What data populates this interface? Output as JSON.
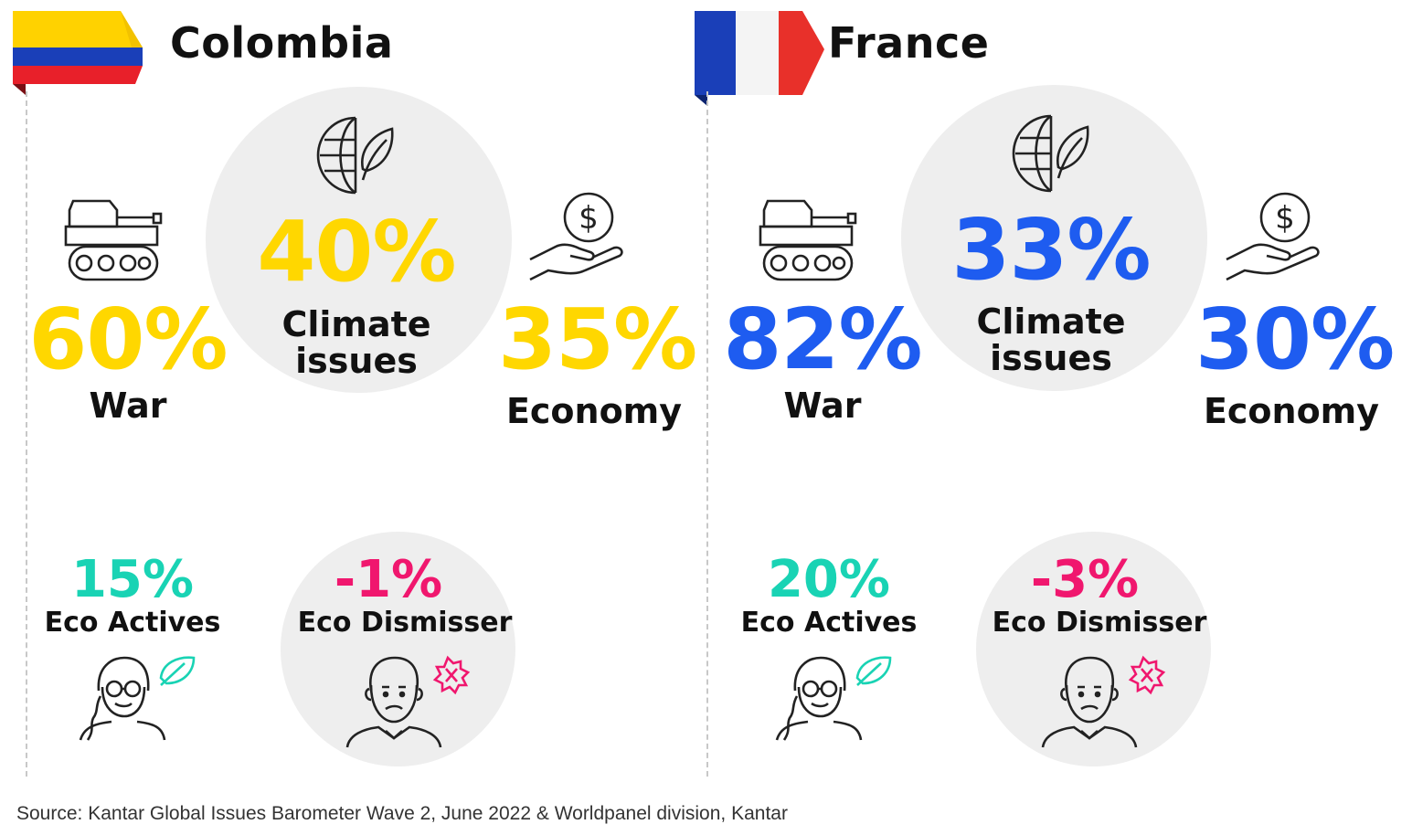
{
  "colors": {
    "colombia_accent": "#ffd700",
    "france_accent": "#1e5cf0",
    "eco_actives": "#19d3b4",
    "eco_dismisser": "#f0176e",
    "circle_bg": "#eeeeee"
  },
  "panels": [
    {
      "country": "Colombia",
      "flag": "colombia-flag",
      "war": {
        "value": "60%",
        "label": "War",
        "icon": "tank-icon"
      },
      "climate": {
        "value": "40%",
        "label_line1": "Climate",
        "label_line2": "issues",
        "icon": "globe-leaf-icon"
      },
      "economy": {
        "value": "35%",
        "label": "Economy",
        "icon": "hand-coin-icon"
      },
      "eco_actives": {
        "value": "15%",
        "label": "Eco Actives",
        "icon": "woman-leaf-icon"
      },
      "eco_dismisser": {
        "value": "-1%",
        "label": "Eco Dismisser",
        "icon": "man-cross-icon"
      }
    },
    {
      "country": "France",
      "flag": "france-flag",
      "war": {
        "value": "82%",
        "label": "War",
        "icon": "tank-icon"
      },
      "climate": {
        "value": "33%",
        "label_line1": "Climate",
        "label_line2": "issues",
        "icon": "globe-leaf-icon"
      },
      "economy": {
        "value": "30%",
        "label": "Economy",
        "icon": "hand-coin-icon"
      },
      "eco_actives": {
        "value": "20%",
        "label": "Eco Actives",
        "icon": "woman-leaf-icon"
      },
      "eco_dismisser": {
        "value": "-3%",
        "label": "Eco Dismisser",
        "icon": "man-cross-icon"
      }
    }
  ],
  "source": "Source: Kantar Global Issues Barometer Wave 2, June 2022 & Worldpanel division, Kantar"
}
